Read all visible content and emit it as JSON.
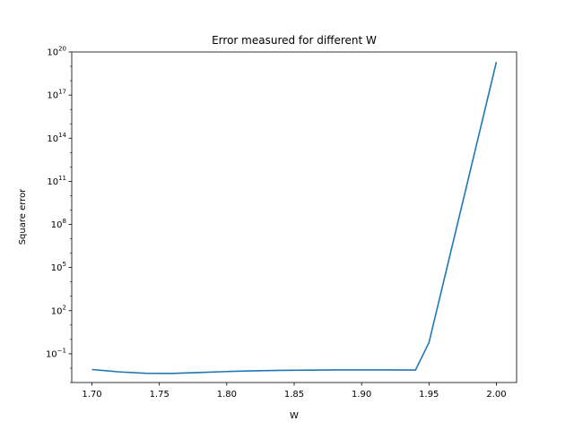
{
  "chart_data": {
    "type": "line",
    "title": "Error measured for different W",
    "xlabel": "W",
    "ylabel": "Square error",
    "xlim": [
      1.685,
      2.015
    ],
    "ylim_log10": [
      -3.0,
      20.0
    ],
    "y_scale": "log",
    "grid": false,
    "x_ticks": [
      "1.70",
      "1.75",
      "1.80",
      "1.85",
      "1.90",
      "1.95",
      "2.00"
    ],
    "y_ticks": [
      {
        "base": "10",
        "exp": "−1",
        "log10": -1
      },
      {
        "base": "10",
        "exp": "2",
        "log10": 2
      },
      {
        "base": "10",
        "exp": "5",
        "log10": 5
      },
      {
        "base": "10",
        "exp": "8",
        "log10": 8
      },
      {
        "base": "10",
        "exp": "11",
        "log10": 11
      },
      {
        "base": "10",
        "exp": "14",
        "log10": 14
      },
      {
        "base": "10",
        "exp": "17",
        "log10": 17
      },
      {
        "base": "10",
        "exp": "20",
        "log10": 20
      }
    ],
    "series": [
      {
        "color": "#1f77b4",
        "x": [
          1.7,
          1.72,
          1.74,
          1.76,
          1.78,
          1.8,
          1.82,
          1.84,
          1.86,
          1.88,
          1.9,
          1.92,
          1.94,
          1.95,
          2.0
        ],
        "y": [
          0.008,
          0.0055,
          0.0044,
          0.0043,
          0.005,
          0.0058,
          0.0065,
          0.007,
          0.0073,
          0.0075,
          0.0075,
          0.0075,
          0.0074,
          0.6,
          2e+19
        ]
      }
    ]
  }
}
